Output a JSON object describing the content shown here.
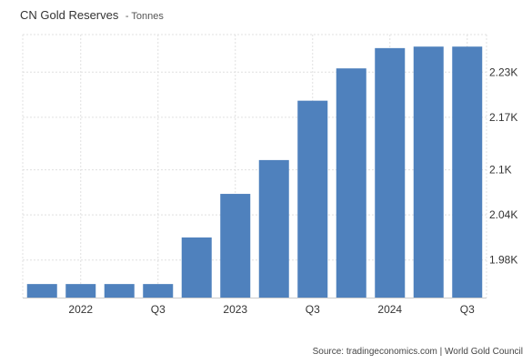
{
  "header": {
    "title": "CN Gold Reserves",
    "subtitle": "- Tonnes"
  },
  "footer": {
    "source": "Source: tradingeconomics.com | World Gold Council"
  },
  "colors": {
    "bar": "#4f81bd",
    "grid": "#e0e0e0",
    "axis_text": "#333333"
  },
  "chart_data": {
    "type": "bar",
    "title": "CN Gold Reserves",
    "subtitle": "- Tonnes",
    "categories": [
      "2021 Q4",
      "2022 Q1",
      "2022 Q2",
      "2022 Q3",
      "2022 Q4",
      "2023 Q1",
      "2023 Q2",
      "2023 Q3",
      "2023 Q4",
      "2024 Q1",
      "2024 Q2",
      "2024 Q3"
    ],
    "values": [
      1948,
      1948,
      1948,
      1948,
      2010,
      2068,
      2113,
      2192,
      2235,
      2262,
      2264,
      2264
    ],
    "x_tick_labels": [
      "2022",
      "Q3",
      "2023",
      "Q3",
      "2024",
      "Q3"
    ],
    "x_tick_positions": [
      1.5,
      3.5,
      5.5,
      7.5,
      9.5,
      11.5
    ],
    "y_ticks": [
      1980,
      2040,
      2100,
      2170,
      2230
    ],
    "y_tick_labels": [
      "1.98K",
      "2.04K",
      "2.1K",
      "2.17K",
      "2.23K"
    ],
    "ylim": [
      1930,
      2280
    ],
    "grid": true,
    "y_axis_side": "right",
    "legend": "none"
  }
}
